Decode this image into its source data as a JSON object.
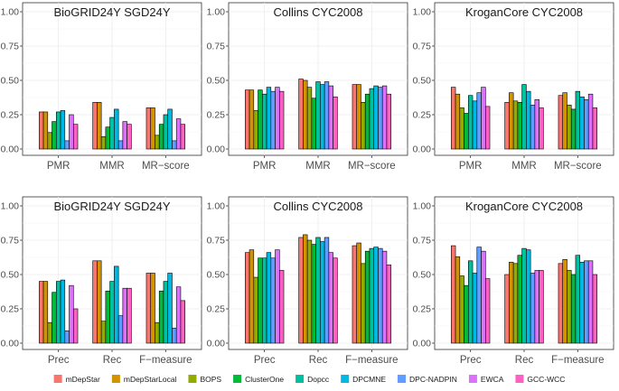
{
  "colors": {
    "mDepStar": "#F8766D",
    "mDepStarLocal": "#D39200",
    "BOPS": "#93AA00",
    "ClusterOne": "#00BA38",
    "Dopcc": "#00C19F",
    "DPCMNE": "#00B9E3",
    "DPC-NADPIN": "#619CFF",
    "EWCA": "#DB72FB",
    "GCC-WCC": "#FF61C3"
  },
  "chart_data": {
    "type": "bar",
    "ylim": [
      0,
      1
    ],
    "yticks": [
      "0.00",
      "0.25",
      "0.50",
      "0.75",
      "1.00"
    ],
    "legend": {
      "position": "bottom",
      "entries": [
        "mDepStar",
        "mDepStarLocal",
        "BOPS",
        "ClusterOne",
        "Dopcc",
        "DPCMNE",
        "DPC-NADPIN",
        "EWCA",
        "GCC-WCC"
      ]
    },
    "panels": [
      {
        "title": "BioGRID24Y SGD24Y",
        "categories": [
          "PMR",
          "MMR",
          "MR−score"
        ],
        "values": [
          [
            0.27,
            0.27,
            0.12,
            0.2,
            0.27,
            0.28,
            0.06,
            0.25,
            0.18
          ],
          [
            0.34,
            0.34,
            0.09,
            0.16,
            0.23,
            0.29,
            0.06,
            0.2,
            0.18
          ],
          [
            0.3,
            0.3,
            0.1,
            0.18,
            0.25,
            0.29,
            0.06,
            0.22,
            0.18
          ]
        ]
      },
      {
        "title": "Collins CYC2008",
        "categories": [
          "PMR",
          "MMR",
          "MR−score"
        ],
        "values": [
          [
            0.43,
            0.43,
            0.28,
            0.43,
            0.4,
            0.45,
            0.42,
            0.45,
            0.42
          ],
          [
            0.51,
            0.5,
            0.45,
            0.37,
            0.49,
            0.47,
            0.49,
            0.46,
            0.38
          ],
          [
            0.47,
            0.47,
            0.34,
            0.4,
            0.44,
            0.46,
            0.45,
            0.46,
            0.4
          ]
        ]
      },
      {
        "title": "KroganCore CYC2008",
        "categories": [
          "PMR",
          "MMR",
          "MR−score"
        ],
        "values": [
          [
            0.45,
            0.4,
            0.3,
            0.26,
            0.39,
            0.35,
            0.41,
            0.45,
            0.31
          ],
          [
            0.34,
            0.41,
            0.35,
            0.34,
            0.47,
            0.42,
            0.32,
            0.36,
            0.3
          ],
          [
            0.39,
            0.41,
            0.32,
            0.29,
            0.42,
            0.38,
            0.36,
            0.4,
            0.3
          ]
        ]
      },
      {
        "title": "BioGRID24Y SGD24Y",
        "categories": [
          "Prec",
          "Rec",
          "F−measure"
        ],
        "values": [
          [
            0.45,
            0.45,
            0.15,
            0.37,
            0.45,
            0.46,
            0.09,
            0.42,
            0.25
          ],
          [
            0.6,
            0.6,
            0.16,
            0.38,
            0.45,
            0.56,
            0.2,
            0.4,
            0.4
          ],
          [
            0.51,
            0.51,
            0.15,
            0.38,
            0.45,
            0.51,
            0.11,
            0.41,
            0.31
          ]
        ]
      },
      {
        "title": "Collins CYC2008",
        "categories": [
          "Prec",
          "Rec",
          "F−measure"
        ],
        "values": [
          [
            0.66,
            0.68,
            0.48,
            0.62,
            0.62,
            0.66,
            0.62,
            0.68,
            0.53
          ],
          [
            0.77,
            0.79,
            0.75,
            0.72,
            0.77,
            0.74,
            0.77,
            0.66,
            0.62
          ],
          [
            0.71,
            0.73,
            0.58,
            0.67,
            0.69,
            0.7,
            0.69,
            0.67,
            0.57
          ]
        ]
      },
      {
        "title": "KroganCore CYC2008",
        "categories": [
          "Prec",
          "Rec",
          "F−measure"
        ],
        "values": [
          [
            0.71,
            0.63,
            0.49,
            0.42,
            0.6,
            0.51,
            0.7,
            0.67,
            0.47
          ],
          [
            0.5,
            0.59,
            0.58,
            0.64,
            0.69,
            0.68,
            0.51,
            0.53,
            0.53
          ],
          [
            0.58,
            0.61,
            0.53,
            0.5,
            0.64,
            0.59,
            0.6,
            0.6,
            0.5
          ]
        ]
      }
    ]
  }
}
